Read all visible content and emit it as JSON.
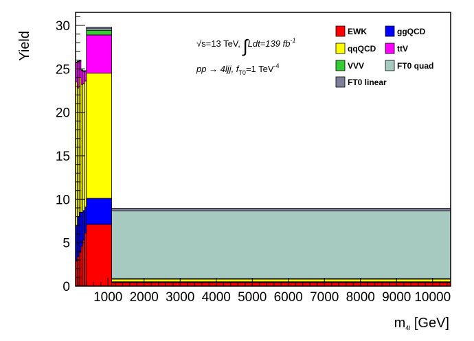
{
  "chart_data": {
    "type": "bar",
    "stacked": true,
    "xlabel": "m",
    "xlabel_sub": "4l",
    "xlabel_unit": " [GeV]",
    "ylabel": "Yield",
    "xlim": [
      100,
      10500
    ],
    "ylim": [
      0,
      31.5
    ],
    "x_tick_labels": [
      "1000",
      "2000",
      "3000",
      "4000",
      "5000",
      "6000",
      "7000",
      "8000",
      "9000",
      "10000"
    ],
    "x_ticks": [
      1000,
      2000,
      3000,
      4000,
      5000,
      6000,
      7000,
      8000,
      9000,
      10000
    ],
    "y_tick_labels": [
      "0",
      "5",
      "10",
      "15",
      "20",
      "25",
      "30"
    ],
    "y_ticks": [
      0,
      5,
      10,
      15,
      20,
      25,
      30
    ],
    "bin_edges": [
      100,
      150,
      200,
      250,
      300,
      350,
      400,
      1100,
      10500
    ],
    "series": [
      {
        "name": "EWK",
        "color": "#ff0000",
        "values": [
          2.9,
          3.4,
          3.9,
          4.6,
          5.3,
          6.1,
          7.1,
          0.4
        ]
      },
      {
        "name": "ggQCD",
        "color": "#0000ff",
        "values": [
          4.0,
          4.6,
          4.6,
          3.9,
          3.4,
          3.0,
          3.0,
          0.1
        ]
      },
      {
        "name": "qqQCD",
        "color": "#ffff00",
        "values": [
          16.6,
          14.8,
          15.5,
          14.7,
          14.6,
          14.5,
          14.4,
          0.3
        ]
      },
      {
        "name": "ttV",
        "color": "#ff00ff",
        "values": [
          2.2,
          3.0,
          1.9,
          1.6,
          1.4,
          1.1,
          4.4,
          0.05
        ]
      },
      {
        "name": "VVV",
        "color": "#33cc33",
        "values": [
          0.05,
          0.05,
          0.05,
          0.05,
          0.05,
          0.05,
          0.5,
          0.02
        ]
      },
      {
        "name": "FT0 quad",
        "color": "#a6c9c0",
        "values": [
          0.02,
          0.02,
          0.02,
          0.02,
          0.02,
          0.02,
          0.2,
          7.8
        ]
      },
      {
        "name": "FT0 linear",
        "color": "#7f7f99",
        "values": [
          0.02,
          0.02,
          0.02,
          0.02,
          0.02,
          0.02,
          0.2,
          0.3
        ]
      }
    ],
    "legend_placement": "top-right",
    "legend_columns": 2,
    "annotation": {
      "sqrt": "√",
      "energy": "s=13 TeV, ",
      "integral": "∫",
      "lumi": "Ldt=139 fb",
      "lumi_exp": "-1",
      "process": "pp → 4ljj, f",
      "coupling_sub": "T0",
      "coupling": "=1 TeV",
      "coupling_exp": "-4"
    },
    "grid": false
  }
}
